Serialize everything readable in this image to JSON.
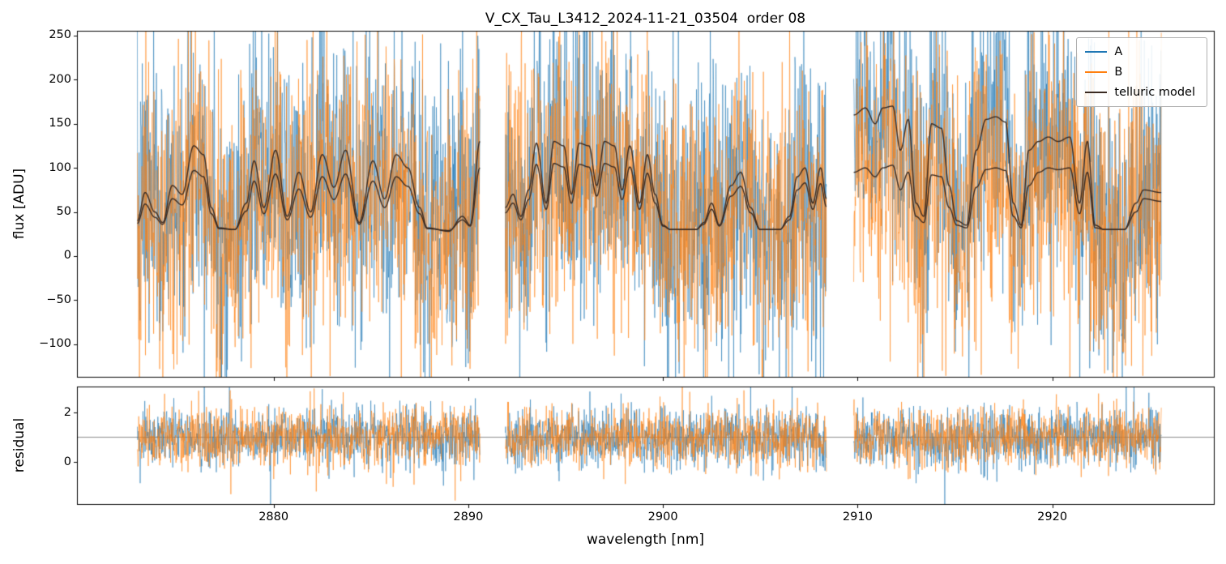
{
  "figure": {
    "title": "V_CX_Tau_L3412_2024-11-21_03504  order 08"
  },
  "chart_data": {
    "type": "line",
    "title": "V_CX_Tau_L3412_2024-11-21_03504  order 08",
    "xlabel": "wavelength [nm]",
    "panels": [
      {
        "name": "flux",
        "ylabel": "flux [ADU]"
      },
      {
        "name": "residual",
        "ylabel": "residual"
      }
    ],
    "xlim": [
      2869.9,
      2928.3
    ],
    "ylim": [
      -137,
      255.5
    ],
    "ylim2": [
      -1.7,
      3.05
    ],
    "grid": false,
    "xticks": [
      {
        "v": 2880,
        "label": "2880"
      },
      {
        "v": 2890,
        "label": "2890"
      },
      {
        "v": 2900,
        "label": "2900"
      },
      {
        "v": 2910,
        "label": "2910"
      },
      {
        "v": 2920,
        "label": "2920"
      }
    ],
    "yticks": [
      {
        "v": -100,
        "label": "−100"
      },
      {
        "v": -50,
        "label": "−50"
      },
      {
        "v": 0,
        "label": "0"
      },
      {
        "v": 50,
        "label": "50"
      },
      {
        "v": 100,
        "label": "100"
      },
      {
        "v": 150,
        "label": "150"
      },
      {
        "v": 200,
        "label": "200"
      },
      {
        "v": 250,
        "label": "250"
      }
    ],
    "yticks2": [
      {
        "v": 0,
        "label": "0"
      },
      {
        "v": 2,
        "label": "2"
      }
    ],
    "legend": {
      "location": "upper right",
      "entries": [
        {
          "label": "A",
          "color": "#1f77b4"
        },
        {
          "label": "B",
          "color": "#ff7f0e"
        },
        {
          "label": "telluric model",
          "color": "#3a2a21"
        }
      ]
    },
    "colors": {
      "A": "#1f77b4",
      "B": "#ff7f0e",
      "telluric": "#3a2a21",
      "reference_line": "#7a7a7a",
      "spine": "#000000"
    },
    "reference_line_y": 1.0,
    "noise": {
      "flux_sigma": 80,
      "residual_mean": 1.0,
      "residual_sigma": 0.6,
      "seed": 7,
      "points_per_nm": 55,
      "alpha": 0.8
    },
    "segments": [
      {
        "x": [
          2873.0,
          2890.6
        ],
        "telluric_A": [
          [
            2873.0,
            40
          ],
          [
            2873.4,
            72
          ],
          [
            2873.9,
            50
          ],
          [
            2874.3,
            38
          ],
          [
            2874.8,
            80
          ],
          [
            2875.3,
            70
          ],
          [
            2875.9,
            125
          ],
          [
            2876.4,
            115
          ],
          [
            2876.8,
            55
          ],
          [
            2877.2,
            32
          ],
          [
            2878.0,
            30
          ],
          [
            2878.6,
            60
          ],
          [
            2879.0,
            108
          ],
          [
            2879.5,
            55
          ],
          [
            2880.1,
            120
          ],
          [
            2880.7,
            45
          ],
          [
            2881.3,
            95
          ],
          [
            2881.9,
            50
          ],
          [
            2882.5,
            115
          ],
          [
            2883.1,
            78
          ],
          [
            2883.7,
            120
          ],
          [
            2884.4,
            38
          ],
          [
            2885.1,
            108
          ],
          [
            2885.7,
            65
          ],
          [
            2886.3,
            115
          ],
          [
            2886.9,
            100
          ],
          [
            2887.5,
            55
          ],
          [
            2887.9,
            32
          ],
          [
            2889.0,
            28
          ],
          [
            2889.7,
            45
          ],
          [
            2890.1,
            35
          ],
          [
            2890.6,
            130
          ]
        ],
        "telluric_B": [
          [
            2873.0,
            37
          ],
          [
            2873.4,
            59
          ],
          [
            2873.9,
            44
          ],
          [
            2874.3,
            36
          ],
          [
            2874.8,
            65
          ],
          [
            2875.3,
            58
          ],
          [
            2875.9,
            97
          ],
          [
            2876.4,
            90
          ],
          [
            2876.8,
            48
          ],
          [
            2877.2,
            31
          ],
          [
            2878.0,
            30
          ],
          [
            2878.6,
            51
          ],
          [
            2879.0,
            85
          ],
          [
            2879.5,
            48
          ],
          [
            2880.1,
            93
          ],
          [
            2880.7,
            41
          ],
          [
            2881.3,
            76
          ],
          [
            2881.9,
            44
          ],
          [
            2882.5,
            90
          ],
          [
            2883.1,
            64
          ],
          [
            2883.7,
            93
          ],
          [
            2884.4,
            36
          ],
          [
            2885.1,
            85
          ],
          [
            2885.7,
            55
          ],
          [
            2886.3,
            90
          ],
          [
            2886.9,
            79
          ],
          [
            2887.5,
            48
          ],
          [
            2887.9,
            31
          ],
          [
            2889.0,
            29
          ],
          [
            2889.7,
            41
          ],
          [
            2890.1,
            34
          ],
          [
            2890.6,
            100
          ]
        ]
      },
      {
        "x": [
          2891.9,
          2908.4
        ],
        "telluric_A": [
          [
            2891.9,
            55
          ],
          [
            2892.3,
            70
          ],
          [
            2892.7,
            45
          ],
          [
            2893.1,
            75
          ],
          [
            2893.5,
            128
          ],
          [
            2894.0,
            60
          ],
          [
            2894.4,
            130
          ],
          [
            2894.9,
            125
          ],
          [
            2895.3,
            70
          ],
          [
            2895.7,
            128
          ],
          [
            2896.2,
            125
          ],
          [
            2896.6,
            80
          ],
          [
            2897.0,
            130
          ],
          [
            2897.5,
            125
          ],
          [
            2897.9,
            75
          ],
          [
            2898.3,
            125
          ],
          [
            2898.8,
            60
          ],
          [
            2899.2,
            115
          ],
          [
            2899.6,
            70
          ],
          [
            2900.0,
            35
          ],
          [
            2900.4,
            30
          ],
          [
            2901.7,
            30
          ],
          [
            2902.1,
            38
          ],
          [
            2902.5,
            60
          ],
          [
            2902.9,
            35
          ],
          [
            2903.5,
            80
          ],
          [
            2904.0,
            95
          ],
          [
            2904.5,
            55
          ],
          [
            2905.0,
            30
          ],
          [
            2906.0,
            30
          ],
          [
            2906.5,
            45
          ],
          [
            2906.9,
            90
          ],
          [
            2907.3,
            100
          ],
          [
            2907.7,
            60
          ],
          [
            2908.1,
            100
          ],
          [
            2908.4,
            65
          ]
        ],
        "telluric_B": [
          [
            2891.9,
            49
          ],
          [
            2892.3,
            60
          ],
          [
            2892.7,
            41
          ],
          [
            2893.1,
            64
          ],
          [
            2893.5,
            104
          ],
          [
            2894.0,
            53
          ],
          [
            2894.4,
            105
          ],
          [
            2894.9,
            101
          ],
          [
            2895.3,
            60
          ],
          [
            2895.7,
            104
          ],
          [
            2896.2,
            101
          ],
          [
            2896.6,
            68
          ],
          [
            2897.0,
            105
          ],
          [
            2897.5,
            101
          ],
          [
            2897.9,
            64
          ],
          [
            2898.3,
            101
          ],
          [
            2898.8,
            53
          ],
          [
            2899.2,
            94
          ],
          [
            2899.6,
            60
          ],
          [
            2900.0,
            34
          ],
          [
            2900.4,
            30
          ],
          [
            2901.7,
            30
          ],
          [
            2902.1,
            36
          ],
          [
            2902.5,
            53
          ],
          [
            2902.9,
            34
          ],
          [
            2903.5,
            68
          ],
          [
            2904.0,
            79
          ],
          [
            2904.5,
            49
          ],
          [
            2905.0,
            30
          ],
          [
            2906.0,
            30
          ],
          [
            2906.5,
            41
          ],
          [
            2906.9,
            75
          ],
          [
            2907.3,
            83
          ],
          [
            2907.7,
            53
          ],
          [
            2908.1,
            82
          ],
          [
            2908.4,
            56
          ]
        ]
      },
      {
        "x": [
          2909.8,
          2925.6
        ],
        "telluric_A": [
          [
            2909.8,
            160
          ],
          [
            2910.4,
            168
          ],
          [
            2910.9,
            150
          ],
          [
            2911.3,
            168
          ],
          [
            2911.8,
            170
          ],
          [
            2912.2,
            120
          ],
          [
            2912.6,
            155
          ],
          [
            2913.0,
            60
          ],
          [
            2913.4,
            45
          ],
          [
            2913.8,
            150
          ],
          [
            2914.3,
            145
          ],
          [
            2914.7,
            80
          ],
          [
            2915.1,
            40
          ],
          [
            2915.6,
            35
          ],
          [
            2916.1,
            120
          ],
          [
            2916.6,
            155
          ],
          [
            2917.1,
            158
          ],
          [
            2917.6,
            152
          ],
          [
            2918.0,
            60
          ],
          [
            2918.4,
            35
          ],
          [
            2918.8,
            120
          ],
          [
            2919.3,
            130
          ],
          [
            2919.8,
            135
          ],
          [
            2920.3,
            130
          ],
          [
            2920.9,
            135
          ],
          [
            2921.4,
            60
          ],
          [
            2921.8,
            130
          ],
          [
            2922.2,
            35
          ],
          [
            2922.7,
            30
          ],
          [
            2923.7,
            30
          ],
          [
            2924.3,
            60
          ],
          [
            2924.7,
            75
          ],
          [
            2925.6,
            72
          ]
        ],
        "telluric_B": [
          [
            2909.8,
            95
          ],
          [
            2910.4,
            100
          ],
          [
            2910.9,
            90
          ],
          [
            2911.3,
            100
          ],
          [
            2911.8,
            103
          ],
          [
            2912.2,
            75
          ],
          [
            2912.6,
            95
          ],
          [
            2913.0,
            45
          ],
          [
            2913.4,
            38
          ],
          [
            2913.8,
            92
          ],
          [
            2914.3,
            90
          ],
          [
            2914.7,
            55
          ],
          [
            2915.1,
            35
          ],
          [
            2915.6,
            32
          ],
          [
            2916.1,
            78
          ],
          [
            2916.6,
            98
          ],
          [
            2917.1,
            100
          ],
          [
            2917.6,
            97
          ],
          [
            2918.0,
            45
          ],
          [
            2918.4,
            32
          ],
          [
            2918.8,
            80
          ],
          [
            2919.3,
            95
          ],
          [
            2919.8,
            100
          ],
          [
            2920.3,
            98
          ],
          [
            2920.9,
            100
          ],
          [
            2921.4,
            48
          ],
          [
            2921.8,
            95
          ],
          [
            2922.2,
            32
          ],
          [
            2922.7,
            30
          ],
          [
            2923.7,
            30
          ],
          [
            2924.3,
            50
          ],
          [
            2924.7,
            65
          ],
          [
            2925.6,
            62
          ]
        ]
      }
    ]
  }
}
